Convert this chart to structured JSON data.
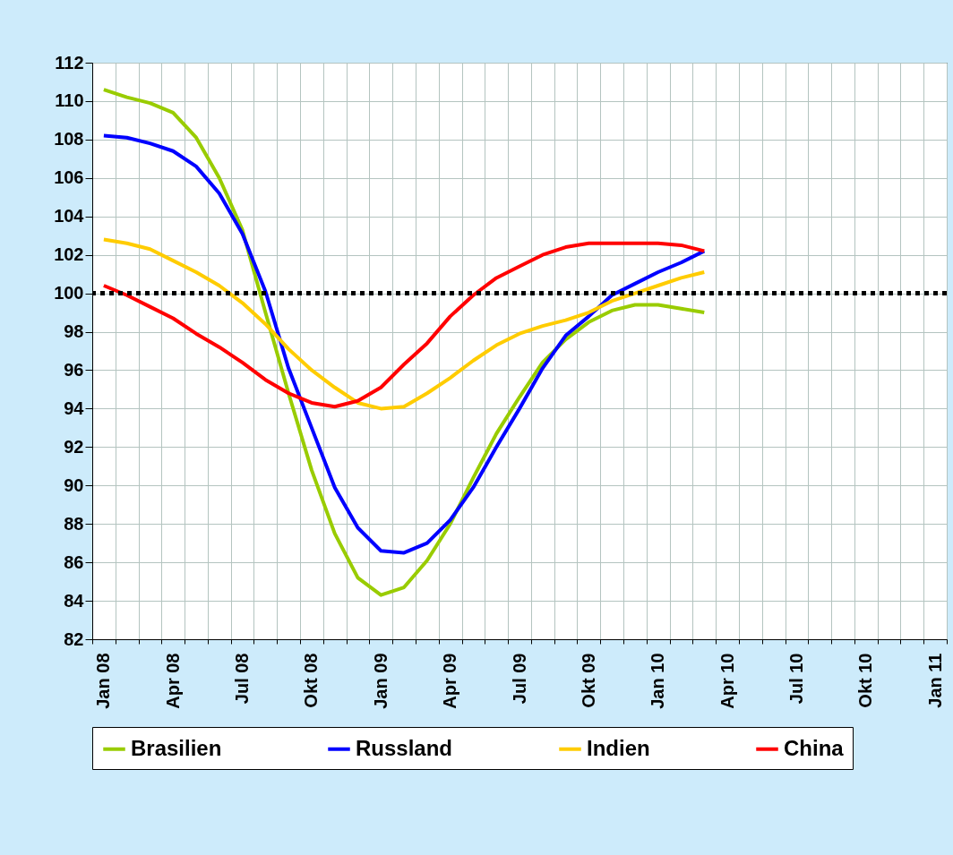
{
  "chart_data": {
    "type": "line",
    "categories": [
      "Jan 08",
      null,
      null,
      "Apr 08",
      null,
      null,
      "Jul 08",
      null,
      null,
      "Okt 08",
      null,
      null,
      "Jan 09",
      null,
      null,
      "Apr 09",
      null,
      null,
      "Jul 09",
      null,
      null,
      "Okt 09",
      null,
      null,
      "Jan 10",
      null,
      null,
      "Apr 10",
      null,
      null,
      "Jul 10",
      null,
      null,
      "Okt 10",
      null,
      null,
      "Jan 11"
    ],
    "series": [
      {
        "name": "Brasilien",
        "color": "#99cc00",
        "values": [
          110.6,
          110.2,
          109.9,
          109.4,
          108.1,
          106.0,
          103.3,
          99.0,
          94.8,
          90.8,
          87.5,
          85.2,
          84.3,
          84.7,
          86.1,
          88.0,
          90.4,
          92.7,
          94.6,
          96.4,
          97.6,
          98.5,
          99.1,
          99.4,
          99.4,
          99.2,
          99.0,
          null,
          null,
          null,
          null,
          null,
          null,
          null,
          null,
          null,
          null
        ]
      },
      {
        "name": "Russland",
        "color": "#0000ff",
        "values": [
          108.2,
          108.1,
          107.8,
          107.4,
          106.6,
          105.2,
          103.1,
          100.1,
          96.1,
          93.0,
          89.9,
          87.8,
          86.6,
          86.5,
          87.0,
          88.2,
          89.9,
          92.0,
          94.0,
          96.1,
          97.8,
          98.8,
          99.9,
          100.5,
          101.1,
          101.6,
          102.2,
          null,
          null,
          null,
          null,
          null,
          null,
          null,
          null,
          null,
          null
        ]
      },
      {
        "name": "Indien",
        "color": "#ffcc00",
        "values": [
          102.8,
          102.6,
          102.3,
          101.7,
          101.1,
          100.4,
          99.5,
          98.4,
          97.1,
          96.0,
          95.1,
          94.3,
          94.0,
          94.1,
          94.8,
          95.6,
          96.5,
          97.3,
          97.9,
          98.3,
          98.6,
          99.0,
          99.6,
          100.0,
          100.4,
          100.8,
          101.1,
          null,
          null,
          null,
          null,
          null,
          null,
          null,
          null,
          null,
          null
        ]
      },
      {
        "name": "China",
        "color": "#ff0000",
        "values": [
          100.4,
          99.9,
          99.3,
          98.7,
          97.9,
          97.2,
          96.4,
          95.5,
          94.8,
          94.3,
          94.1,
          94.4,
          95.1,
          96.3,
          97.4,
          98.8,
          99.9,
          100.8,
          101.4,
          102.0,
          102.4,
          102.6,
          102.6,
          102.6,
          102.6,
          102.5,
          102.2,
          null,
          null,
          null,
          null,
          null,
          null,
          null,
          null,
          null,
          null
        ]
      }
    ],
    "ylim": [
      82,
      112
    ],
    "yticks": [
      82,
      84,
      86,
      88,
      90,
      92,
      94,
      96,
      98,
      100,
      102,
      104,
      106,
      108,
      110,
      112
    ],
    "grid": true,
    "legend": "bottom",
    "ref_lines": [
      {
        "axis": "y",
        "value": 100,
        "color": "#000000",
        "line_style": "dotted"
      }
    ]
  }
}
